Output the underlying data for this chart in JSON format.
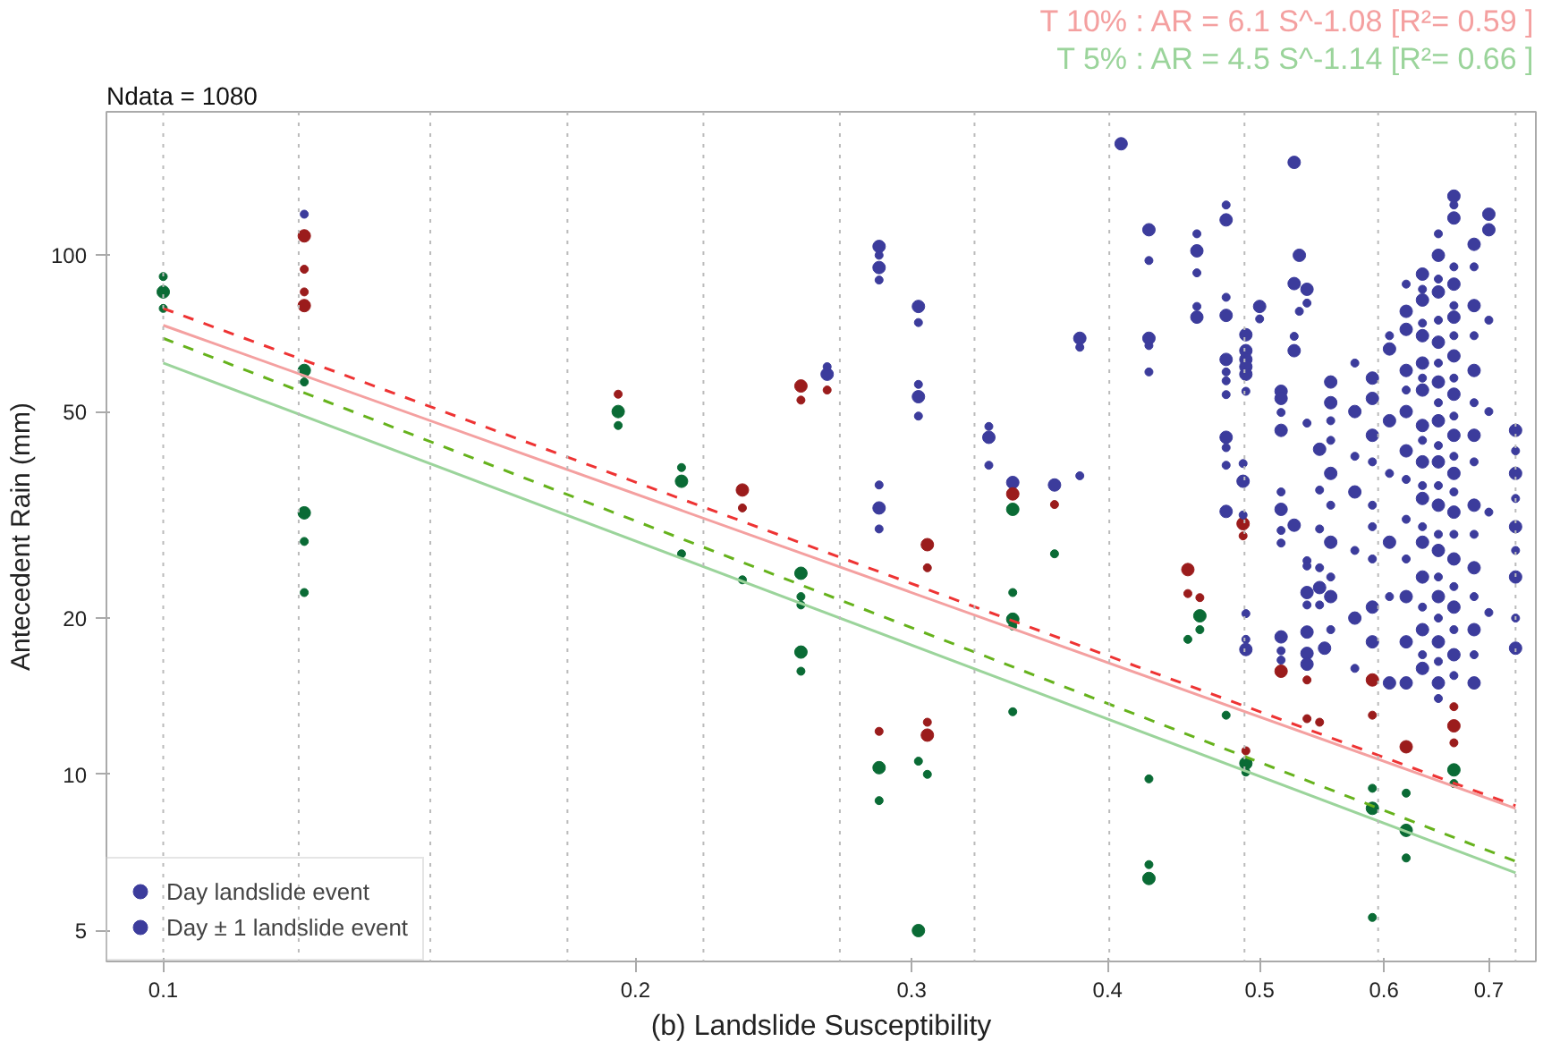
{
  "chart_data": {
    "type": "scatter",
    "xlabel": "(b) Landslide Susceptibility",
    "ylabel": "Antecedent Rain (mm)",
    "annotations": [
      "Ndata = 1080"
    ],
    "log": "xy",
    "xlim": [
      0.092,
      0.75
    ],
    "xticks": [
      0.1,
      0.2,
      0.3,
      0.4,
      0.5,
      0.6,
      0.7
    ],
    "ylim": [
      4.36,
      189
    ],
    "yticks": [
      5,
      10,
      20,
      50,
      100
    ],
    "grid": false,
    "legend": "bottom left",
    "marker": "circle",
    "ref_lines": [
      {
        "axis": "x",
        "value": 0.1,
        "color": "#bbbbbb",
        "line_style": "dotted"
      },
      {
        "axis": "x",
        "value": 0.122,
        "color": "#bbbbbb",
        "line_style": "dotted"
      },
      {
        "axis": "x",
        "value": 0.148,
        "color": "#bbbbbb",
        "line_style": "dotted"
      },
      {
        "axis": "x",
        "value": 0.181,
        "color": "#bbbbbb",
        "line_style": "dotted"
      },
      {
        "axis": "x",
        "value": 0.221,
        "color": "#bbbbbb",
        "line_style": "dotted"
      },
      {
        "axis": "x",
        "value": 0.27,
        "color": "#bbbbbb",
        "line_style": "dotted"
      },
      {
        "axis": "x",
        "value": 0.329,
        "color": "#bbbbbb",
        "line_style": "dotted"
      },
      {
        "axis": "x",
        "value": 0.401,
        "color": "#bbbbbb",
        "line_style": "dotted"
      },
      {
        "axis": "x",
        "value": 0.489,
        "color": "#bbbbbb",
        "line_style": "dotted"
      },
      {
        "axis": "x",
        "value": 0.595,
        "color": "#bbbbbb",
        "line_style": "dotted"
      },
      {
        "axis": "x",
        "value": 0.728,
        "color": "#bbbbbb",
        "line_style": "dotted"
      }
    ],
    "series": [
      {
        "name": "Day landslide event",
        "x": [
          0.265,
          0.286,
          0.286,
          0.286,
          0.303,
          0.303,
          0.336,
          0.348,
          0.37,
          0.384,
          0.408,
          0.425,
          0.425,
          0.456,
          0.456,
          0.476,
          0.476,
          0.476,
          0.476,
          0.476,
          0.488,
          0.49,
          0.49,
          0.49,
          0.49,
          0.49,
          0.5,
          0.516,
          0.516,
          0.516,
          0.516,
          0.526,
          0.526,
          0.526,
          0.526,
          0.53,
          0.536,
          0.546,
          0.49,
          0.516,
          0.536,
          0.536,
          0.536,
          0.536,
          0.546,
          0.555,
          0.555,
          0.555,
          0.555,
          0.555,
          0.55,
          0.575,
          0.575,
          0.575,
          0.59,
          0.59,
          0.59,
          0.59,
          0.59,
          0.605,
          0.605,
          0.605,
          0.605,
          0.62,
          0.62,
          0.62,
          0.62,
          0.62,
          0.62,
          0.62,
          0.62,
          0.635,
          0.635,
          0.635,
          0.635,
          0.635,
          0.635,
          0.635,
          0.635,
          0.635,
          0.635,
          0.635,
          0.635,
          0.65,
          0.65,
          0.65,
          0.65,
          0.65,
          0.65,
          0.65,
          0.65,
          0.65,
          0.65,
          0.65,
          0.665,
          0.665,
          0.665,
          0.665,
          0.665,
          0.665,
          0.665,
          0.665,
          0.665,
          0.665,
          0.665,
          0.665,
          0.685,
          0.685,
          0.685,
          0.685,
          0.685,
          0.685,
          0.685,
          0.685,
          0.7,
          0.7,
          0.728,
          0.728,
          0.728,
          0.728,
          0.728,
          0.123,
          0.123,
          0.234,
          0.255,
          0.307,
          0.307,
          0.348,
          0.488,
          0.45,
          0.516,
          0.59,
          0.62,
          0.665,
          0.1,
          0.123,
          0.123,
          0.195,
          0.214,
          0.255,
          0.255,
          0.286,
          0.303,
          0.348,
          0.348,
          0.458,
          0.49,
          0.425,
          0.59,
          0.62,
          0.665
        ],
        "values": [
          59,
          104,
          94.7,
          32.6,
          79.7,
          53.4,
          44.6,
          36.5,
          36.1,
          69.2,
          164,
          112,
          69.2,
          102,
          76,
          117,
          76.6,
          63,
          44.6,
          32.1,
          36.7,
          70.3,
          65.5,
          63,
          61,
          59,
          79.7,
          54.7,
          53,
          46,
          32.4,
          151,
          88.2,
          65.5,
          30.2,
          100,
          86,
          42.3,
          17.4,
          18.4,
          18.8,
          17.1,
          16.3,
          22.4,
          22.9,
          57,
          52,
          38,
          28,
          22,
          17.5,
          50,
          35,
          20,
          58,
          53,
          45,
          21,
          18,
          66,
          48,
          28,
          15,
          78,
          72,
          60,
          50,
          42,
          22,
          18,
          15,
          92,
          82,
          70,
          62,
          55,
          47,
          40,
          34,
          28,
          24,
          19,
          16,
          100,
          85,
          68,
          57,
          48,
          40,
          33,
          27,
          22,
          18,
          15,
          130,
          118,
          88,
          76,
          64,
          54,
          45,
          38,
          32,
          26,
          21,
          17,
          105,
          80,
          60,
          45,
          33,
          25,
          19,
          15,
          120,
          112,
          46,
          38,
          30,
          24,
          17.5,
          109,
          80,
          35.3,
          56,
          27.7,
          11.9,
          34.7,
          30.4,
          24.8,
          15.8,
          15.2,
          11.3,
          12.4,
          85,
          60,
          31.9,
          50,
          36.7,
          24.4,
          17.2,
          10.3,
          5.0,
          32.4,
          19.9,
          20.2,
          10.5,
          6.3,
          8.6,
          7.8,
          10.2
        ],
        "colors": [
          "#3c3c9c",
          "#3c3c9c",
          "#3c3c9c",
          "#3c3c9c",
          "#3c3c9c",
          "#3c3c9c",
          "#3c3c9c",
          "#3c3c9c",
          "#3c3c9c",
          "#3c3c9c",
          "#3c3c9c",
          "#3c3c9c",
          "#3c3c9c",
          "#3c3c9c",
          "#3c3c9c",
          "#3c3c9c",
          "#3c3c9c",
          "#3c3c9c",
          "#3c3c9c",
          "#3c3c9c",
          "#3c3c9c",
          "#3c3c9c",
          "#3c3c9c",
          "#3c3c9c",
          "#3c3c9c",
          "#3c3c9c",
          "#3c3c9c",
          "#3c3c9c",
          "#3c3c9c",
          "#3c3c9c",
          "#3c3c9c",
          "#3c3c9c",
          "#3c3c9c",
          "#3c3c9c",
          "#3c3c9c",
          "#3c3c9c",
          "#3c3c9c",
          "#3c3c9c",
          "#3c3c9c",
          "#3c3c9c",
          "#3c3c9c",
          "#3c3c9c",
          "#3c3c9c",
          "#3c3c9c",
          "#3c3c9c",
          "#3c3c9c",
          "#3c3c9c",
          "#3c3c9c",
          "#3c3c9c",
          "#3c3c9c",
          "#3c3c9c",
          "#3c3c9c",
          "#3c3c9c",
          "#3c3c9c",
          "#3c3c9c",
          "#3c3c9c",
          "#3c3c9c",
          "#3c3c9c",
          "#3c3c9c",
          "#3c3c9c",
          "#3c3c9c",
          "#3c3c9c",
          "#3c3c9c",
          "#3c3c9c",
          "#3c3c9c",
          "#3c3c9c",
          "#3c3c9c",
          "#3c3c9c",
          "#3c3c9c",
          "#3c3c9c",
          "#3c3c9c",
          "#3c3c9c",
          "#3c3c9c",
          "#3c3c9c",
          "#3c3c9c",
          "#3c3c9c",
          "#3c3c9c",
          "#3c3c9c",
          "#3c3c9c",
          "#3c3c9c",
          "#3c3c9c",
          "#3c3c9c",
          "#3c3c9c",
          "#3c3c9c",
          "#3c3c9c",
          "#3c3c9c",
          "#3c3c9c",
          "#3c3c9c",
          "#3c3c9c",
          "#3c3c9c",
          "#3c3c9c",
          "#3c3c9c",
          "#3c3c9c",
          "#3c3c9c",
          "#3c3c9c",
          "#3c3c9c",
          "#3c3c9c",
          "#3c3c9c",
          "#3c3c9c",
          "#3c3c9c",
          "#3c3c9c",
          "#3c3c9c",
          "#3c3c9c",
          "#3c3c9c",
          "#3c3c9c",
          "#3c3c9c",
          "#3c3c9c",
          "#3c3c9c",
          "#3c3c9c",
          "#3c3c9c",
          "#3c3c9c",
          "#3c3c9c",
          "#3c3c9c",
          "#3c3c9c",
          "#3c3c9c",
          "#3c3c9c",
          "#3c3c9c",
          "#3c3c9c",
          "#3c3c9c",
          "#3c3c9c",
          "#3c3c9c",
          "#9b1c1c",
          "#9b1c1c",
          "#9b1c1c",
          "#9b1c1c",
          "#9b1c1c",
          "#9b1c1c",
          "#9b1c1c",
          "#9b1c1c",
          "#9b1c1c",
          "#9b1c1c",
          "#9b1c1c",
          "#9b1c1c",
          "#9b1c1c",
          "#0a6b35",
          "#0a6b35",
          "#0a6b35",
          "#0a6b35",
          "#0a6b35",
          "#0a6b35",
          "#0a6b35",
          "#0a6b35",
          "#0a6b35",
          "#0a6b35",
          "#0a6b35",
          "#0a6b35",
          "#0a6b35",
          "#0a6b35",
          "#0a6b35",
          "#0a6b35",
          "#0a6b35"
        ]
      },
      {
        "name": "Day ± 1 landslide event",
        "x": [
          0.123,
          0.265,
          0.286,
          0.286,
          0.286,
          0.286,
          0.303,
          0.303,
          0.303,
          0.336,
          0.336,
          0.384,
          0.384,
          0.425,
          0.425,
          0.425,
          0.456,
          0.456,
          0.456,
          0.476,
          0.476,
          0.476,
          0.476,
          0.476,
          0.476,
          0.476,
          0.488,
          0.488,
          0.49,
          0.5,
          0.516,
          0.516,
          0.516,
          0.516,
          0.526,
          0.53,
          0.536,
          0.536,
          0.546,
          0.546,
          0.49,
          0.49,
          0.516,
          0.516,
          0.536,
          0.536,
          0.536,
          0.546,
          0.546,
          0.555,
          0.555,
          0.555,
          0.555,
          0.555,
          0.575,
          0.575,
          0.575,
          0.575,
          0.59,
          0.59,
          0.59,
          0.59,
          0.605,
          0.605,
          0.605,
          0.62,
          0.62,
          0.62,
          0.62,
          0.62,
          0.635,
          0.635,
          0.635,
          0.635,
          0.635,
          0.635,
          0.635,
          0.635,
          0.65,
          0.65,
          0.65,
          0.65,
          0.65,
          0.65,
          0.65,
          0.65,
          0.65,
          0.65,
          0.65,
          0.65,
          0.665,
          0.665,
          0.665,
          0.665,
          0.665,
          0.665,
          0.665,
          0.665,
          0.665,
          0.665,
          0.665,
          0.665,
          0.685,
          0.685,
          0.685,
          0.685,
          0.685,
          0.685,
          0.685,
          0.7,
          0.7,
          0.7,
          0.7,
          0.728,
          0.728,
          0.728,
          0.728,
          0.123,
          0.123,
          0.195,
          0.234,
          0.255,
          0.265,
          0.286,
          0.307,
          0.307,
          0.37,
          0.488,
          0.45,
          0.458,
          0.49,
          0.536,
          0.536,
          0.546,
          0.59,
          0.665,
          0.665,
          0.1,
          0.1,
          0.123,
          0.123,
          0.123,
          0.195,
          0.214,
          0.214,
          0.234,
          0.255,
          0.255,
          0.255,
          0.286,
          0.303,
          0.307,
          0.348,
          0.348,
          0.348,
          0.37,
          0.45,
          0.458,
          0.476,
          0.49,
          0.425,
          0.425,
          0.59,
          0.59,
          0.62,
          0.62,
          0.665
        ],
        "values": [
          120,
          61,
          100,
          89.6,
          36.1,
          29.7,
          74.2,
          56.4,
          49,
          46.8,
          39.4,
          66.5,
          37.6,
          97.7,
          67,
          59.6,
          110,
          92.5,
          79.7,
          125,
          83,
          59.6,
          57.3,
          53.9,
          42.6,
          39.4,
          39.7,
          31.6,
          54.7,
          75.4,
          49.8,
          35,
          29.5,
          27.9,
          69.8,
          78,
          80.9,
          47.5,
          35.3,
          29.7,
          20.4,
          18.2,
          17.3,
          16.6,
          21.2,
          25.8,
          25.2,
          21.2,
          25,
          48,
          44,
          33,
          24,
          19,
          62,
          41,
          27,
          16,
          40,
          33,
          30,
          26,
          70,
          38,
          22,
          88,
          55,
          37,
          31,
          26,
          86,
          74,
          58,
          44,
          36,
          30,
          21,
          17,
          110,
          90,
          75,
          62,
          52,
          43,
          36,
          29,
          24,
          20,
          16.5,
          14,
          125,
          95,
          80,
          70,
          58,
          49,
          41,
          35,
          29,
          23,
          19,
          15.5,
          95,
          70,
          52,
          40,
          29,
          22,
          17,
          75,
          50,
          32,
          20.5,
          42,
          34,
          27,
          20,
          94,
          85,
          54,
          32.6,
          52.6,
          55,
          12.1,
          25,
          12.6,
          33.1,
          28.8,
          22.3,
          21.9,
          11.1,
          15.2,
          12.8,
          12.6,
          13,
          11.5,
          13.5,
          91,
          79,
          57,
          28.1,
          22.4,
          47,
          39,
          26.6,
          23.7,
          22,
          21.2,
          15.8,
          8.9,
          10.6,
          10,
          22.4,
          19.3,
          13.2,
          26.6,
          18.2,
          19,
          13,
          10.1,
          9.8,
          6.7,
          9.4,
          5.3,
          9.2,
          6.9,
          9.6
        ],
        "colors": [
          "#3c3c9c",
          "#3c3c9c",
          "#3c3c9c",
          "#3c3c9c",
          "#3c3c9c",
          "#3c3c9c",
          "#3c3c9c",
          "#3c3c9c",
          "#3c3c9c",
          "#3c3c9c",
          "#3c3c9c",
          "#3c3c9c",
          "#3c3c9c",
          "#3c3c9c",
          "#3c3c9c",
          "#3c3c9c",
          "#3c3c9c",
          "#3c3c9c",
          "#3c3c9c",
          "#3c3c9c",
          "#3c3c9c",
          "#3c3c9c",
          "#3c3c9c",
          "#3c3c9c",
          "#3c3c9c",
          "#3c3c9c",
          "#3c3c9c",
          "#3c3c9c",
          "#3c3c9c",
          "#3c3c9c",
          "#3c3c9c",
          "#3c3c9c",
          "#3c3c9c",
          "#3c3c9c",
          "#3c3c9c",
          "#3c3c9c",
          "#3c3c9c",
          "#3c3c9c",
          "#3c3c9c",
          "#3c3c9c",
          "#3c3c9c",
          "#3c3c9c",
          "#3c3c9c",
          "#3c3c9c",
          "#3c3c9c",
          "#3c3c9c",
          "#3c3c9c",
          "#3c3c9c",
          "#3c3c9c",
          "#3c3c9c",
          "#3c3c9c",
          "#3c3c9c",
          "#3c3c9c",
          "#3c3c9c",
          "#3c3c9c",
          "#3c3c9c",
          "#3c3c9c",
          "#3c3c9c",
          "#3c3c9c",
          "#3c3c9c",
          "#3c3c9c",
          "#3c3c9c",
          "#3c3c9c",
          "#3c3c9c",
          "#3c3c9c",
          "#3c3c9c",
          "#3c3c9c",
          "#3c3c9c",
          "#3c3c9c",
          "#3c3c9c",
          "#3c3c9c",
          "#3c3c9c",
          "#3c3c9c",
          "#3c3c9c",
          "#3c3c9c",
          "#3c3c9c",
          "#3c3c9c",
          "#3c3c9c",
          "#3c3c9c",
          "#3c3c9c",
          "#3c3c9c",
          "#3c3c9c",
          "#3c3c9c",
          "#3c3c9c",
          "#3c3c9c",
          "#3c3c9c",
          "#3c3c9c",
          "#3c3c9c",
          "#3c3c9c",
          "#3c3c9c",
          "#3c3c9c",
          "#3c3c9c",
          "#3c3c9c",
          "#3c3c9c",
          "#3c3c9c",
          "#3c3c9c",
          "#3c3c9c",
          "#3c3c9c",
          "#3c3c9c",
          "#3c3c9c",
          "#3c3c9c",
          "#3c3c9c",
          "#3c3c9c",
          "#3c3c9c",
          "#3c3c9c",
          "#3c3c9c",
          "#3c3c9c",
          "#3c3c9c",
          "#3c3c9c",
          "#3c3c9c",
          "#3c3c9c",
          "#3c3c9c",
          "#3c3c9c",
          "#3c3c9c",
          "#3c3c9c",
          "#3c3c9c",
          "#3c3c9c",
          "#9b1c1c",
          "#9b1c1c",
          "#9b1c1c",
          "#9b1c1c",
          "#9b1c1c",
          "#9b1c1c",
          "#9b1c1c",
          "#9b1c1c",
          "#9b1c1c",
          "#9b1c1c",
          "#9b1c1c",
          "#9b1c1c",
          "#9b1c1c",
          "#9b1c1c",
          "#9b1c1c",
          "#9b1c1c",
          "#9b1c1c",
          "#9b1c1c",
          "#9b1c1c",
          "#9b1c1c",
          "#0a6b35",
          "#0a6b35",
          "#0a6b35",
          "#0a6b35",
          "#0a6b35",
          "#0a6b35",
          "#0a6b35",
          "#0a6b35",
          "#0a6b35",
          "#0a6b35",
          "#0a6b35",
          "#0a6b35",
          "#0a6b35",
          "#0a6b35",
          "#0a6b35",
          "#0a6b35",
          "#0a6b35",
          "#0a6b35",
          "#0a6b35",
          "#0a6b35",
          "#0a6b35",
          "#0a6b35",
          "#0a6b35",
          "#0a6b35",
          "#0a6b35",
          "#0a6b35",
          "#0a6b35",
          "#0a6b35",
          "#0a6b35",
          "#0a6b35"
        ]
      },
      {
        "type": "line",
        "marker": "none",
        "color": "#ee3333",
        "line_style": "dashed",
        "x": [
          0.1,
          0.728
        ],
        "values": [
          79,
          8.7
        ]
      },
      {
        "name": "T 10% : AR = 6.1 S^-1.08 [R²= 0.59 ]",
        "type": "line",
        "marker": "none",
        "color": "#f4a0a0",
        "line_style": "solid",
        "x": [
          0.1,
          0.728
        ],
        "values": [
          73.3,
          8.6
        ]
      },
      {
        "type": "line",
        "marker": "none",
        "color": "#66b21c",
        "line_style": "dashed",
        "x": [
          0.1,
          0.728
        ],
        "values": [
          69.2,
          6.8
        ]
      },
      {
        "name": "T 5% : AR = 4.5 S^-1.14 [R²= 0.66 ]",
        "type": "line",
        "marker": "none",
        "color": "#9bd49b",
        "line_style": "solid",
        "x": [
          0.1,
          0.728
        ],
        "values": [
          62,
          6.46
        ]
      }
    ]
  }
}
